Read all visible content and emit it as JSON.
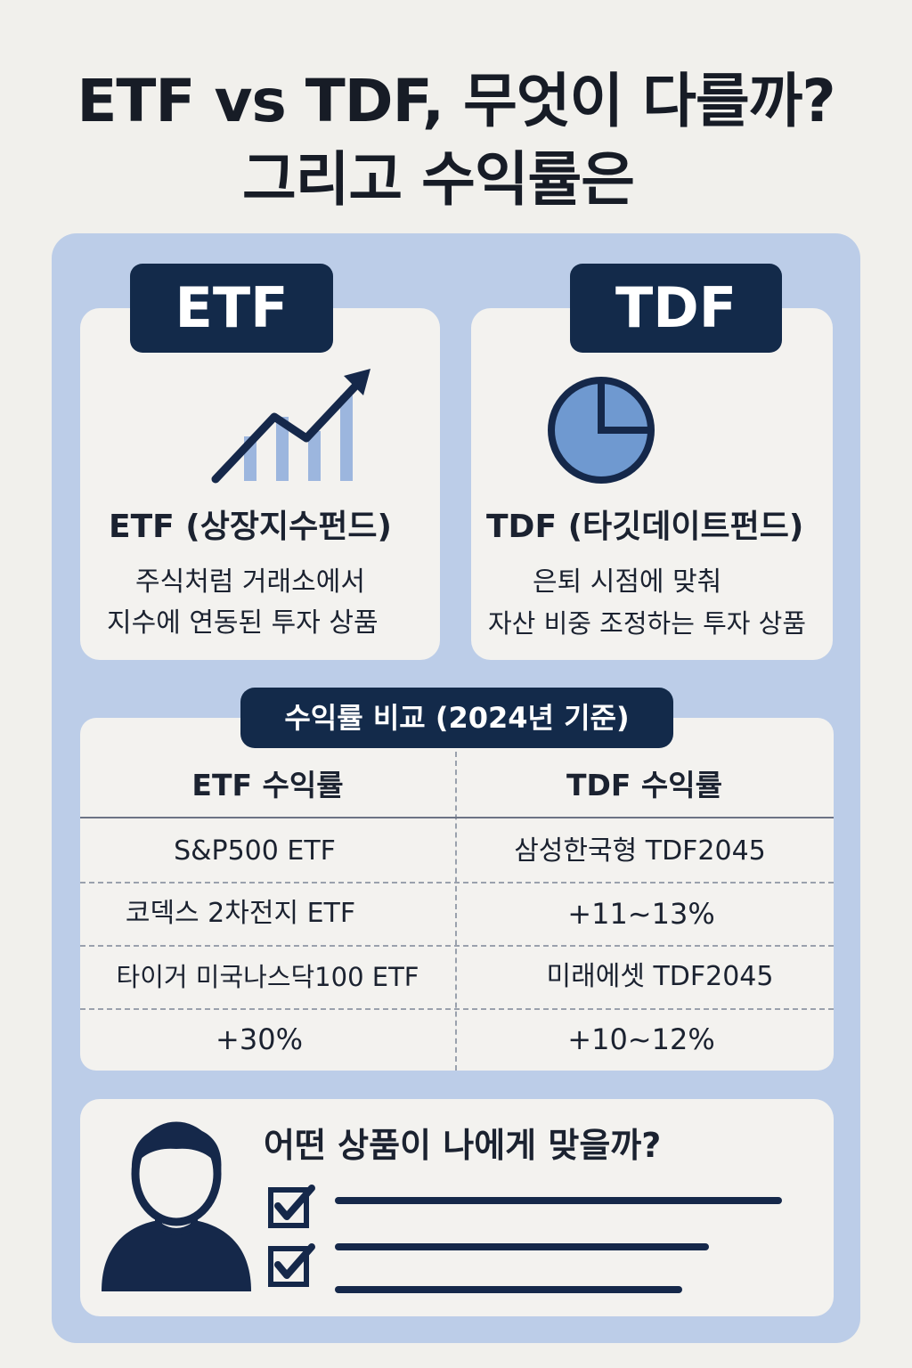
{
  "title": {
    "line1": "ETF vs TDF, 무엇이 다를까?",
    "line2": "그리고 수익률은"
  },
  "etf_card": {
    "badge": "ETF",
    "icon": "trend-chart-icon",
    "heading": "ETF (상장지수펀드)",
    "desc_line1": "주식처럼 거래소에서",
    "desc_line2": "지수에 연동된 투자 상품"
  },
  "tdf_card": {
    "badge": "TDF",
    "icon": "pie-chart-icon",
    "heading": "TDF (타깃데이트펀드)",
    "desc_line1": "은퇴 시점에 맞춰",
    "desc_line2": "자산 비중 조정하는 투자 상품"
  },
  "comparison": {
    "title": "수익률 비교 (2024년 기준)",
    "headers": [
      "ETF 수익률",
      "TDF 수익률"
    ],
    "rows": [
      [
        "S&P500 ETF",
        "삼성한국형 TDF2045"
      ],
      [
        "코덱스 2차전지 ETF",
        "+11~13%"
      ],
      [
        "타이거 미국나스닥100 ETF",
        "미래에셋 TDF2045"
      ],
      [
        "+30%",
        "+10~12%"
      ]
    ]
  },
  "bottom": {
    "question": "어떤 상품이 나에게 맞을까?",
    "icons": [
      "person-icon",
      "checkbox-checked-icon",
      "checkbox-checked-icon"
    ]
  },
  "colors": {
    "navy": "#132a4a",
    "panel_blue": "#bccde8",
    "accent_blue": "#6f99d0",
    "card_bg": "#f3f2ef"
  }
}
